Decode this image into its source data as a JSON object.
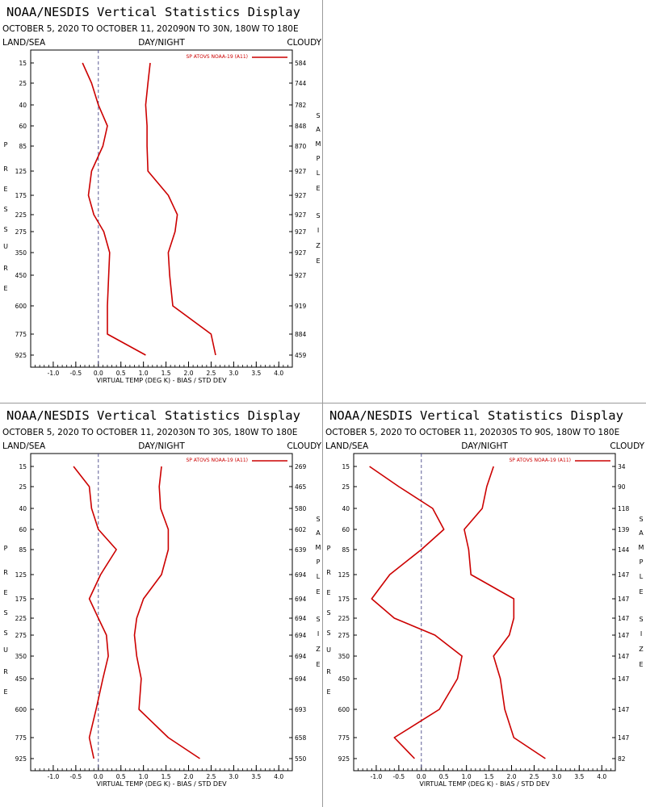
{
  "page": {
    "line_color": "#cc0000",
    "divider_color": "#9a9a9a"
  },
  "chart_data": [
    {
      "type": "line",
      "title": "NOAA/NESDIS Vertical Statistics Display",
      "subtitle_dates": "OCTOBER 5, 2020 TO OCTOBER 11, 2020",
      "subtitle_region": "90N TO 30N, 180W TO 180E",
      "header_left": "LAND/SEA",
      "header_center": "DAY/NIGHT",
      "header_right": "CLOUDY",
      "legend_label": "SP ATOVS NOAA-19 (A11)",
      "legend_placement": "top-right",
      "ylabel": "PRESSURE",
      "right_label": "SAMPLE SIZE",
      "xlabel": "VIRTUAL TEMP (DEG K) - BIAS / STD DEV",
      "x_ticks": [
        "-1.0",
        "-0.5",
        "0.0",
        "0.5",
        "1.0",
        "1.5",
        "2.0",
        "2.5",
        "3.0",
        "3.5",
        "4.0"
      ],
      "xlim": [
        -1.5,
        4.3
      ],
      "pressure_levels": [
        "15",
        "25",
        "40",
        "60",
        "85",
        "125",
        "175",
        "225",
        "275",
        "350",
        "450",
        "600",
        "775",
        "925"
      ],
      "sample_sizes": [
        "584",
        "744",
        "782",
        "848",
        "870",
        "927",
        "927",
        "927",
        "927",
        "927",
        "927",
        "919",
        "884",
        "459"
      ],
      "series": [
        {
          "name": "BIAS",
          "values": [
            -0.35,
            -0.15,
            0.0,
            0.2,
            0.1,
            -0.15,
            -0.22,
            -0.1,
            0.12,
            0.25,
            0.23,
            0.2,
            0.2,
            1.05
          ]
        },
        {
          "name": "STD DEV",
          "values": [
            1.15,
            1.1,
            1.05,
            1.08,
            1.08,
            1.1,
            1.55,
            1.75,
            1.7,
            1.55,
            1.58,
            1.65,
            2.5,
            2.6
          ]
        }
      ]
    },
    {
      "type": "line",
      "title": "NOAA/NESDIS Vertical Statistics Display",
      "subtitle_dates": "OCTOBER 5, 2020 TO OCTOBER 11, 2020",
      "subtitle_region": "30N TO 30S, 180W TO 180E",
      "header_left": "LAND/SEA",
      "header_center": "DAY/NIGHT",
      "header_right": "CLOUDY",
      "legend_label": "SP ATOVS NOAA-19 (A11)",
      "legend_placement": "top-right",
      "ylabel": "PRESSURE",
      "right_label": "SAMPLE SIZE",
      "xlabel": "VIRTUAL TEMP (DEG K) - BIAS / STD DEV",
      "x_ticks": [
        "-1.0",
        "-0.5",
        "0.0",
        "0.5",
        "1.0",
        "1.5",
        "2.0",
        "2.5",
        "3.0",
        "3.5",
        "4.0"
      ],
      "xlim": [
        -1.5,
        4.3
      ],
      "pressure_levels": [
        "15",
        "25",
        "40",
        "60",
        "85",
        "125",
        "175",
        "225",
        "275",
        "350",
        "450",
        "600",
        "775",
        "925"
      ],
      "sample_sizes": [
        "269",
        "465",
        "580",
        "602",
        "639",
        "694",
        "694",
        "694",
        "694",
        "694",
        "694",
        "693",
        "658",
        "550"
      ],
      "series": [
        {
          "name": "BIAS",
          "values": [
            -0.55,
            -0.2,
            -0.15,
            0.0,
            0.4,
            0.05,
            -0.2,
            0.0,
            0.18,
            0.22,
            0.1,
            -0.05,
            -0.2,
            -0.1
          ]
        },
        {
          "name": "STD DEV",
          "values": [
            1.4,
            1.35,
            1.38,
            1.55,
            1.55,
            1.4,
            1.0,
            0.85,
            0.8,
            0.85,
            0.95,
            0.9,
            1.55,
            2.25
          ]
        }
      ]
    },
    {
      "type": "line",
      "title": "NOAA/NESDIS Vertical Statistics Display",
      "subtitle_dates": "OCTOBER 5, 2020 TO OCTOBER 11, 2020",
      "subtitle_region": "30S TO 90S, 180W TO 180E",
      "header_left": "LAND/SEA",
      "header_center": "DAY/NIGHT",
      "header_right": "CLOUDY",
      "legend_label": "SP ATOVS NOAA-19 (A11)",
      "legend_placement": "top-right",
      "ylabel": "PRESSURE",
      "right_label": "SAMPLE SIZE",
      "xlabel": "VIRTUAL TEMP (DEG K) - BIAS / STD DEV",
      "x_ticks": [
        "-1.0",
        "-0.5",
        "0.0",
        "0.5",
        "1.0",
        "1.5",
        "2.0",
        "2.5",
        "3.0",
        "3.5",
        "4.0"
      ],
      "xlim": [
        -1.5,
        4.3
      ],
      "pressure_levels": [
        "15",
        "25",
        "40",
        "60",
        "85",
        "125",
        "175",
        "225",
        "275",
        "350",
        "450",
        "600",
        "775",
        "925"
      ],
      "sample_sizes": [
        "34",
        "90",
        "118",
        "139",
        "144",
        "147",
        "147",
        "147",
        "147",
        "147",
        "147",
        "147",
        "147",
        "82"
      ],
      "series": [
        {
          "name": "BIAS",
          "values": [
            -1.15,
            -0.5,
            0.25,
            0.5,
            0.0,
            -0.7,
            -1.1,
            -0.6,
            0.3,
            0.9,
            0.8,
            0.4,
            -0.6,
            -0.15
          ]
        },
        {
          "name": "STD DEV",
          "values": [
            1.6,
            1.45,
            1.35,
            0.95,
            1.05,
            1.1,
            2.05,
            2.05,
            1.95,
            1.6,
            1.75,
            1.85,
            2.05,
            2.75
          ]
        }
      ]
    }
  ]
}
